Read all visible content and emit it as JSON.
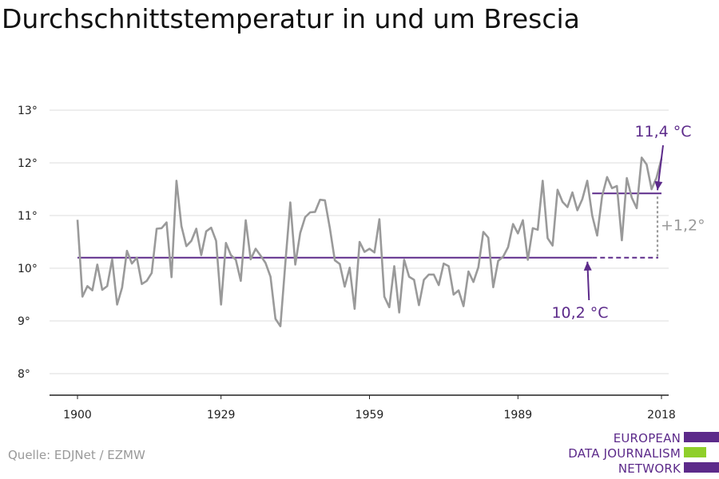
{
  "chart_data": {
    "type": "line",
    "title": "Durchschnittstemperatur in und um Brescia",
    "source": "Quelle: EDJNet / EZMW",
    "xlim": [
      1900,
      2018
    ],
    "ylim": [
      8,
      13
    ],
    "x_ticks": [
      1900,
      1929,
      1959,
      1989,
      2018
    ],
    "y_ticks": [
      {
        "value": 8,
        "label": "8°"
      },
      {
        "value": 9,
        "label": "9°"
      },
      {
        "value": 10,
        "label": "10°"
      },
      {
        "value": 11,
        "label": "11°"
      },
      {
        "value": 12,
        "label": "12°"
      },
      {
        "value": 13,
        "label": "13°"
      }
    ],
    "grid": true,
    "colors": {
      "series": "#9a9a9a",
      "average": "#5c2a8a",
      "difference": "#9a9a9a",
      "grid": "#dddddd",
      "axis": "#222222"
    },
    "series": [
      {
        "x": [
          1900,
          1901,
          1902,
          1903,
          1904,
          1905,
          1906,
          1907,
          1908,
          1909,
          1910,
          1911,
          1912,
          1913,
          1914,
          1915,
          1916,
          1917,
          1918,
          1919,
          1920,
          1921,
          1922,
          1923,
          1924,
          1925,
          1926,
          1927,
          1928,
          1929,
          1930,
          1931,
          1932,
          1933,
          1934,
          1935,
          1936,
          1937,
          1938,
          1939,
          1940,
          1941,
          1942,
          1943,
          1944,
          1945,
          1946,
          1947,
          1948,
          1949,
          1950,
          1951,
          1952,
          1953,
          1954,
          1955,
          1956,
          1957,
          1958,
          1959,
          1960,
          1961,
          1962,
          1963,
          1964,
          1965,
          1966,
          1967,
          1968,
          1969,
          1970,
          1971,
          1972,
          1973,
          1974,
          1975,
          1976,
          1977,
          1978,
          1979,
          1980,
          1981,
          1982,
          1983,
          1984,
          1985,
          1986,
          1987,
          1988,
          1989,
          1990,
          1991,
          1992,
          1993,
          1994,
          1995,
          1996,
          1997,
          1998,
          1999,
          2000,
          2001,
          2002,
          2003,
          2004,
          2005,
          2006,
          2007,
          2008,
          2009,
          2010,
          2011,
          2012,
          2013,
          2014,
          2015,
          2016,
          2017,
          2018
        ],
        "values": [
          10.92,
          9.46,
          9.66,
          9.58,
          10.07,
          9.59,
          9.66,
          10.17,
          9.31,
          9.63,
          10.33,
          10.09,
          10.2,
          9.7,
          9.76,
          9.91,
          10.75,
          10.76,
          10.87,
          9.83,
          11.66,
          10.8,
          10.42,
          10.52,
          10.75,
          10.25,
          10.7,
          10.77,
          10.52,
          9.31,
          10.48,
          10.25,
          10.16,
          9.76,
          10.91,
          10.17,
          10.37,
          10.24,
          10.1,
          9.84,
          9.04,
          8.9,
          10.1,
          11.25,
          10.07,
          10.67,
          10.97,
          11.06,
          11.07,
          11.3,
          11.29,
          10.76,
          10.15,
          10.08,
          9.65,
          10.01,
          9.23,
          10.5,
          10.31,
          10.37,
          10.3,
          10.93,
          9.46,
          9.26,
          10.04,
          9.16,
          10.16,
          9.84,
          9.78,
          9.3,
          9.78,
          9.88,
          9.88,
          9.68,
          10.09,
          10.04,
          9.5,
          9.58,
          9.28,
          9.94,
          9.74,
          10.02,
          10.69,
          10.58,
          9.64,
          10.14,
          10.22,
          10.4,
          10.84,
          10.66,
          10.91,
          10.16,
          10.76,
          10.73,
          11.66,
          10.57,
          10.43,
          11.49,
          11.26,
          11.16,
          11.44,
          11.1,
          11.31,
          11.66,
          11.0,
          10.62,
          11.37,
          11.73,
          11.52,
          11.56,
          10.53,
          11.71,
          11.34,
          11.14,
          12.1,
          11.97,
          11.5,
          11.72,
          12.08
        ]
      }
    ],
    "reference_lines": [
      {
        "value": 10.2,
        "from": 1900,
        "to": 2004,
        "label": "10,2 °C"
      },
      {
        "value": 11.42,
        "from": 2004,
        "to": 2018,
        "label": "11,4 °C"
      }
    ],
    "difference": {
      "label": "+1,2°"
    }
  },
  "logo": {
    "line1": "EUROPEAN",
    "line2": "DATA JOURNALISM",
    "line3": "NETWORK",
    "colors": [
      "#5c2a8a",
      "#8fcf2a",
      "#5c2a8a"
    ]
  }
}
